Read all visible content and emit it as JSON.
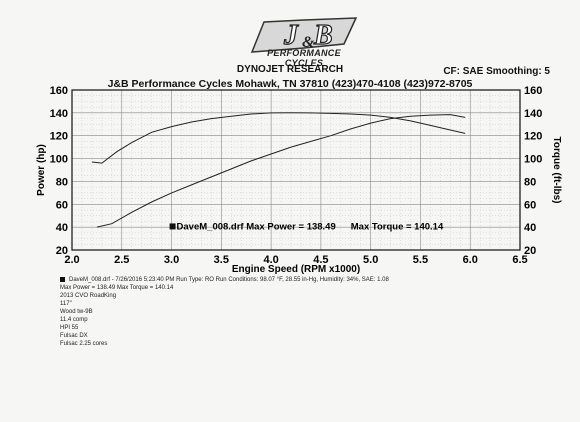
{
  "header": {
    "logo_subtitle": "PERFORMANCE CYCLES",
    "research": "DYNOJET RESEARCH",
    "address": "J&B Performance Cycles Mohawk, TN 37810 (423)470-4108 (423)972-8705",
    "cf": "CF: SAE  Smoothing: 5"
  },
  "chart_data": {
    "type": "line",
    "xlabel": "Engine Speed (RPM x1000)",
    "ylabel": "Power (hp)",
    "y2label": "Torque (ft-lbs)",
    "xlim": [
      2.0,
      6.5
    ],
    "ylim": [
      20,
      160
    ],
    "y2lim": [
      20,
      160
    ],
    "xticks": [
      "2.0",
      "2.5",
      "3.0",
      "3.5",
      "4.0",
      "4.5",
      "5.0",
      "5.5",
      "6.0",
      "6.5"
    ],
    "yticks": [
      "20",
      "40",
      "60",
      "80",
      "100",
      "120",
      "140",
      "160"
    ],
    "grid": true,
    "annotation_power": "DaveM_008.drf Max Power = 138.49",
    "annotation_torque": "Max Torque = 140.14",
    "series": [
      {
        "name": "Power",
        "x": [
          2.25,
          2.4,
          2.6,
          2.8,
          3.0,
          3.2,
          3.4,
          3.6,
          3.8,
          4.0,
          4.2,
          4.4,
          4.6,
          4.8,
          5.0,
          5.2,
          5.4,
          5.6,
          5.8,
          5.95
        ],
        "y": [
          40,
          43,
          53,
          62,
          70,
          77,
          84,
          91,
          98,
          104,
          110,
          115,
          120,
          126,
          131,
          135,
          137,
          138,
          138.5,
          136
        ]
      },
      {
        "name": "Torque",
        "x": [
          2.2,
          2.3,
          2.45,
          2.6,
          2.8,
          3.0,
          3.2,
          3.4,
          3.6,
          3.8,
          4.0,
          4.2,
          4.4,
          4.6,
          4.8,
          5.0,
          5.2,
          5.4,
          5.6,
          5.8,
          5.95
        ],
        "y": [
          97,
          96,
          106,
          114,
          123,
          128,
          132,
          135,
          137,
          139,
          140,
          140.1,
          140,
          139.5,
          139,
          138,
          136,
          133,
          129,
          125,
          122
        ]
      }
    ]
  },
  "run_info": {
    "line1": "DaveM_008.drf - 7/26/2016 5:23:40 PM  Run Type: RO  Run Conditions: 98.07 °F, 28.55 in-Hg,  Humidity: 34%, SAE: 1.08",
    "line2": "Max Power = 138.49  Max Torque = 140.14",
    "line3": "2013 CVO RoadKing",
    "line4": "117\"",
    "line5": "Wood tw-9B",
    "line6": "11.4 comp",
    "line7": "HPI 55",
    "line8": "Fulsac DX",
    "line9": "Fulsac 2.25 cores"
  }
}
